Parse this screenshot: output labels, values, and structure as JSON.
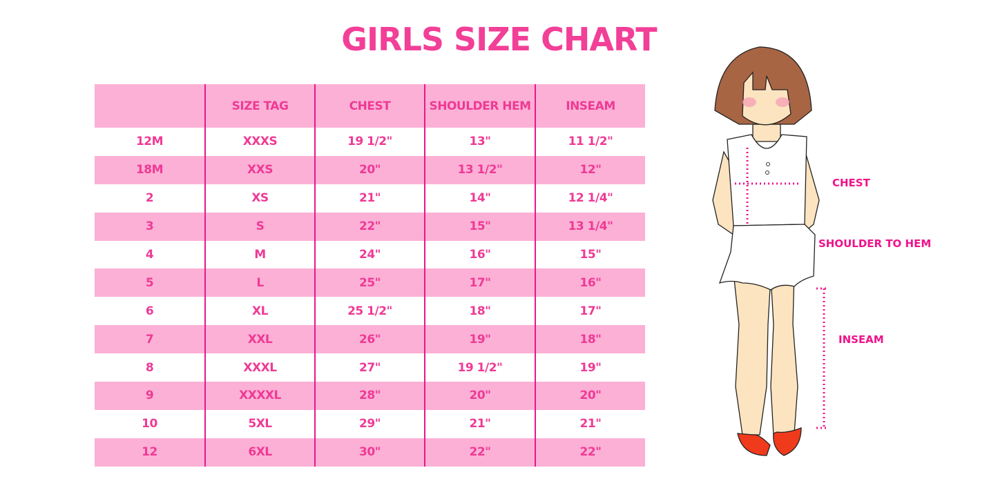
{
  "title": "GIRLS SIZE CHART",
  "table": {
    "headers": [
      "",
      "SIZE TAG",
      "CHEST",
      "SHOULDER HEM",
      "INSEAM"
    ],
    "rows": [
      [
        "12M",
        "XXXS",
        "19 1/2\"",
        "13\"",
        "11 1/2\""
      ],
      [
        "18M",
        "XXS",
        "20\"",
        "13 1/2\"",
        "12\""
      ],
      [
        "2",
        "XS",
        "21\"",
        "14\"",
        "12 1/4\""
      ],
      [
        "3",
        "S",
        "22\"",
        "15\"",
        "13 1/4\""
      ],
      [
        "4",
        "M",
        "24\"",
        "16\"",
        "15\""
      ],
      [
        "5",
        "L",
        "25\"",
        "17\"",
        "16\""
      ],
      [
        "6",
        "XL",
        "25 1/2\"",
        "18\"",
        "17\""
      ],
      [
        "7",
        "XXL",
        "26\"",
        "19\"",
        "18\""
      ],
      [
        "8",
        "XXXL",
        "27\"",
        "19 1/2\"",
        "19\""
      ],
      [
        "9",
        "XXXXL",
        "28\"",
        "20\"",
        "20\""
      ],
      [
        "10",
        "5XL",
        "29\"",
        "21\"",
        "21\""
      ],
      [
        "12",
        "6XL",
        "30\"",
        "22\"",
        "22\""
      ]
    ]
  },
  "figure": {
    "labels": {
      "chest": "CHEST",
      "shoulder_to_hem": "SHOULDER TO HEM",
      "inseam": "INSEAM"
    }
  },
  "colors": {
    "accent": "#f23f97",
    "row_pink": "#fcb0d6",
    "divider": "#e8168a"
  }
}
